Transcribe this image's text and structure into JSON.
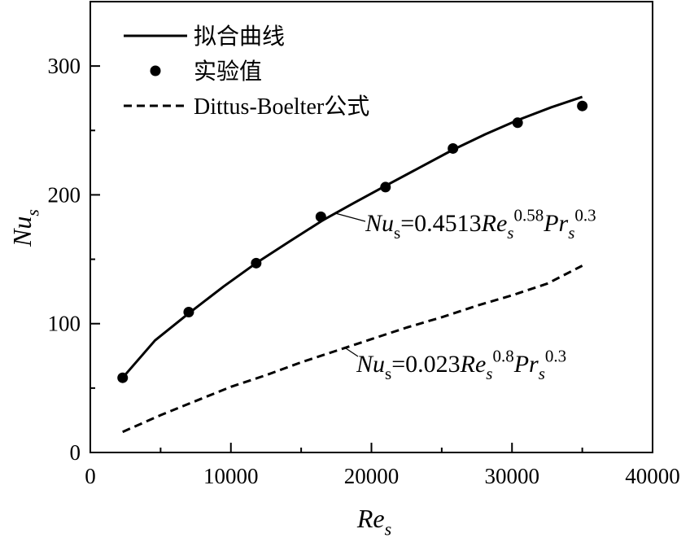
{
  "chart_data": {
    "type": "line",
    "xlabel": {
      "main": "Re",
      "sub": "s"
    },
    "ylabel": {
      "main": "Nu",
      "sub": "s"
    },
    "xlim": [
      0,
      40000
    ],
    "ylim": [
      0,
      350
    ],
    "x_ticks": [
      0,
      10000,
      20000,
      30000,
      40000
    ],
    "y_ticks": [
      0,
      100,
      200,
      300
    ],
    "x_tick_labels": [
      "0",
      "10000",
      "20000",
      "30000",
      "40000"
    ],
    "y_tick_labels": [
      "0",
      "100",
      "200",
      "300"
    ],
    "legend": {
      "position": "top-left",
      "entries": [
        "拟合曲线",
        "实验值",
        "Dittus-Boelter公式"
      ]
    },
    "series": [
      {
        "name": "拟合曲线",
        "style": "solid",
        "x": [
          2300,
          4600,
          7000,
          9500,
          11800,
          14200,
          16500,
          18800,
          21000,
          23400,
          25800,
          28100,
          30400,
          32800,
          35000
        ],
        "y": [
          58,
          87,
          108,
          129,
          147,
          164,
          180,
          194,
          207,
          221,
          235,
          247,
          258,
          268,
          276
        ]
      },
      {
        "name": "实验值",
        "style": "marker",
        "x": [
          2300,
          7000,
          11800,
          16400,
          21000,
          25800,
          30400,
          35000
        ],
        "y": [
          58,
          109,
          147,
          183,
          206,
          236,
          256,
          269
        ]
      },
      {
        "name": "Dittus-Boelter公式",
        "style": "dashed",
        "x": [
          2300,
          5000,
          7500,
          10000,
          12500,
          15000,
          17500,
          20000,
          22500,
          25000,
          27500,
          30000,
          32500,
          35000
        ],
        "y": [
          16,
          29,
          40,
          51,
          60,
          70,
          79,
          88,
          97,
          105,
          114,
          122,
          131,
          145
        ]
      }
    ],
    "annotations": [
      {
        "parts": [
          {
            "t": "Nu",
            "i": true
          },
          {
            "t": "s",
            "sub": true
          },
          {
            "t": "=0.4513"
          },
          {
            "t": "Re",
            "i": true
          },
          {
            "t": "s",
            "i": true,
            "sub": true
          },
          {
            "t": "0.58",
            "sup": true
          },
          {
            "t": "Pr",
            "i": true
          },
          {
            "t": "s",
            "i": true,
            "sub": true
          },
          {
            "t": "0.3",
            "sup": true
          }
        ]
      },
      {
        "parts": [
          {
            "t": "Nu",
            "i": true
          },
          {
            "t": "s",
            "sub": true
          },
          {
            "t": "=0.023"
          },
          {
            "t": "Re",
            "i": true
          },
          {
            "t": "s",
            "i": true,
            "sub": true
          },
          {
            "t": "0.8",
            "sup": true
          },
          {
            "t": "Pr",
            "i": true
          },
          {
            "t": "s",
            "i": true,
            "sub": true
          },
          {
            "t": "0.3",
            "sup": true
          }
        ]
      }
    ],
    "colors": {
      "line": "#000000",
      "background": "#ffffff"
    }
  }
}
